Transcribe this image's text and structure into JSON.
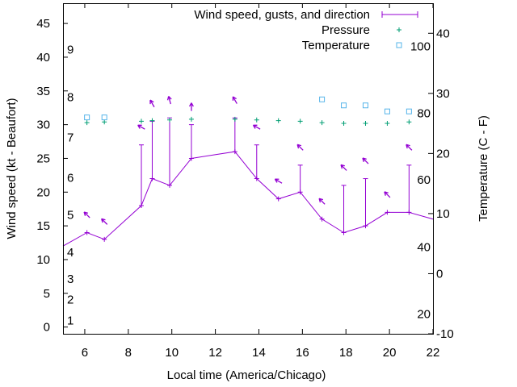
{
  "chart_data": {
    "type": "line",
    "xlabel": "Local time (America/Chicago)",
    "ylabel": "Wind speed (kt - Beaufort)",
    "y2label": "Temperature (C - F)",
    "xlim": [
      5,
      22
    ],
    "ylim": [
      -1,
      48
    ],
    "y2lim": [
      -10,
      45
    ],
    "xticks": [
      6,
      8,
      10,
      12,
      14,
      16,
      18,
      20,
      22
    ],
    "yticks": [
      0,
      5,
      10,
      15,
      20,
      25,
      30,
      35,
      40,
      45
    ],
    "y2ticks": [
      -10,
      0,
      10,
      20,
      30,
      40
    ],
    "grid": false,
    "legend_position": "top-right",
    "colors": {
      "wind": "#9400d3",
      "pressure": "#009e73",
      "temperature": "#56b4e9"
    },
    "legend": {
      "wind": "Wind speed, gusts, and direction",
      "pressure": "Pressure",
      "temperature": "Temperature"
    },
    "beaufort_labels": [
      {
        "text": "1",
        "y": 1
      },
      {
        "text": "2",
        "y": 4.1
      },
      {
        "text": "3",
        "y": 7.1
      },
      {
        "text": "4",
        "y": 11.1
      },
      {
        "text": "5",
        "y": 16.6
      },
      {
        "text": "6",
        "y": 22.1
      },
      {
        "text": "7",
        "y": 28.1
      },
      {
        "text": "8",
        "y": 34.1
      },
      {
        "text": "9",
        "y": 41.1
      }
    ],
    "fahrenheit_labels": [
      {
        "text": "20",
        "y2": -6.7
      },
      {
        "text": "40",
        "y2": 4.4
      },
      {
        "text": "60",
        "y2": 15.6
      },
      {
        "text": "80",
        "y2": 26.7
      },
      {
        "text": "100",
        "y2": 37.8
      }
    ],
    "wind_series": [
      {
        "x": 4.9,
        "speed": 12,
        "gust": null,
        "dir": null
      },
      {
        "x": 6.1,
        "speed": 14,
        "gust": null,
        "dir": 315
      },
      {
        "x": 6.9,
        "speed": 13,
        "gust": null,
        "dir": 315
      },
      {
        "x": 8.6,
        "speed": 18,
        "gust": 27,
        "dir": 300
      },
      {
        "x": 9.1,
        "speed": 22,
        "gust": 30.5,
        "dir": 330
      },
      {
        "x": 9.9,
        "speed": 21,
        "gust": 31,
        "dir": 345
      },
      {
        "x": 10.9,
        "speed": 25,
        "gust": 30,
        "dir": 360
      },
      {
        "x": 12.9,
        "speed": 26,
        "gust": 31,
        "dir": 330
      },
      {
        "x": 13.9,
        "speed": 22,
        "gust": 27,
        "dir": 300
      },
      {
        "x": 14.9,
        "speed": 19,
        "gust": null,
        "dir": 300
      },
      {
        "x": 15.9,
        "speed": 20,
        "gust": 24,
        "dir": 315
      },
      {
        "x": 16.9,
        "speed": 16,
        "gust": null,
        "dir": 315
      },
      {
        "x": 17.9,
        "speed": 14,
        "gust": 21,
        "dir": 315
      },
      {
        "x": 18.9,
        "speed": 15,
        "gust": 22,
        "dir": 315
      },
      {
        "x": 19.9,
        "speed": 17,
        "gust": null,
        "dir": 315
      },
      {
        "x": 20.9,
        "speed": 17,
        "gust": 24,
        "dir": 315
      },
      {
        "x": 22.1,
        "speed": 16,
        "gust": null,
        "dir": null
      }
    ],
    "pressure_series": [
      {
        "x": 6.1,
        "y": 30.3
      },
      {
        "x": 6.9,
        "y": 30.4
      },
      {
        "x": 8.6,
        "y": 30.5
      },
      {
        "x": 9.1,
        "y": 30.6
      },
      {
        "x": 9.9,
        "y": 30.7
      },
      {
        "x": 10.9,
        "y": 30.8
      },
      {
        "x": 12.9,
        "y": 30.8
      },
      {
        "x": 13.9,
        "y": 30.7
      },
      {
        "x": 14.9,
        "y": 30.6
      },
      {
        "x": 15.9,
        "y": 30.5
      },
      {
        "x": 16.9,
        "y": 30.3
      },
      {
        "x": 17.9,
        "y": 30.2
      },
      {
        "x": 18.9,
        "y": 30.2
      },
      {
        "x": 19.9,
        "y": 30.2
      },
      {
        "x": 20.9,
        "y": 30.4
      }
    ],
    "temperature_series": [
      {
        "x": 6.1,
        "y": 26
      },
      {
        "x": 6.9,
        "y": 26
      },
      {
        "x": 16.9,
        "y": 29
      },
      {
        "x": 17.9,
        "y": 28
      },
      {
        "x": 18.9,
        "y": 28
      },
      {
        "x": 19.9,
        "y": 27
      },
      {
        "x": 20.9,
        "y": 27
      }
    ]
  }
}
